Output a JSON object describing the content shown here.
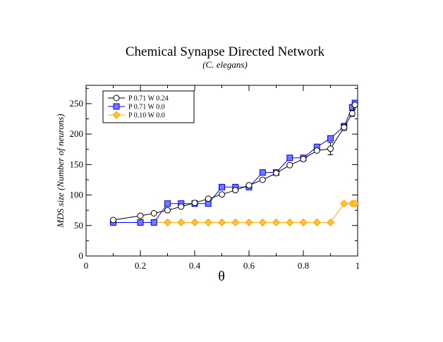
{
  "chart_data": {
    "type": "line",
    "title": "Chemical Synapse  Directed Network",
    "subtitle": "(C. elegans)",
    "xlabel": "θ",
    "ylabel": "MDS size (Number of neurons)",
    "xlim": [
      0,
      1
    ],
    "ylim": [
      0,
      280
    ],
    "xticks": [
      0,
      0.2,
      0.4,
      0.6,
      0.8,
      1
    ],
    "xtick_labels": [
      "0",
      "0.2",
      "0.4",
      "0.6",
      "0.8",
      "1"
    ],
    "yticks": [
      0,
      50,
      100,
      150,
      200,
      250
    ],
    "ytick_labels": [
      "0",
      "50",
      "100",
      "150",
      "200",
      "250"
    ],
    "legend_position": "top-left",
    "series": [
      {
        "name": "P 0.71 W 0.24",
        "marker": "circle",
        "color": "#000000",
        "fill": "#ffffff",
        "x": [
          0.1,
          0.2,
          0.25,
          0.3,
          0.35,
          0.4,
          0.45,
          0.5,
          0.55,
          0.6,
          0.65,
          0.7,
          0.75,
          0.8,
          0.85,
          0.9,
          0.95,
          0.98,
          0.99
        ],
        "y": [
          59,
          66,
          70,
          75,
          81,
          87,
          94,
          101,
          108,
          116,
          125,
          136,
          149,
          159,
          173,
          176,
          211,
          234,
          248
        ],
        "err": [
          0,
          0,
          0,
          0,
          0,
          0,
          0,
          0,
          0,
          0,
          0,
          0,
          0,
          0,
          0,
          10,
          5,
          5,
          0
        ]
      },
      {
        "name": "P 0.71 W 0.0",
        "marker": "square",
        "color": "#0000ff",
        "fill": "#6f7bff",
        "x": [
          0.1,
          0.2,
          0.25,
          0.3,
          0.35,
          0.4,
          0.45,
          0.5,
          0.55,
          0.6,
          0.65,
          0.7,
          0.75,
          0.8,
          0.85,
          0.9,
          0.95,
          0.98,
          0.99
        ],
        "y": [
          55,
          55,
          55,
          86,
          86,
          86,
          86,
          113,
          113,
          113,
          137,
          137,
          161,
          161,
          179,
          193,
          213,
          244,
          251
        ],
        "err": []
      },
      {
        "name": "P 0.10 W 0.0",
        "marker": "diamond",
        "color": "#ffa500",
        "fill": "#ffc03d",
        "x": [
          0.1,
          0.2,
          0.25,
          0.3,
          0.35,
          0.4,
          0.45,
          0.5,
          0.55,
          0.6,
          0.65,
          0.7,
          0.75,
          0.8,
          0.85,
          0.9,
          0.95,
          0.98,
          0.99
        ],
        "y": [
          55,
          55,
          55,
          55,
          55,
          55,
          55,
          55,
          55,
          55,
          55,
          55,
          55,
          55,
          55,
          55,
          86,
          86,
          86
        ],
        "err": []
      }
    ]
  }
}
